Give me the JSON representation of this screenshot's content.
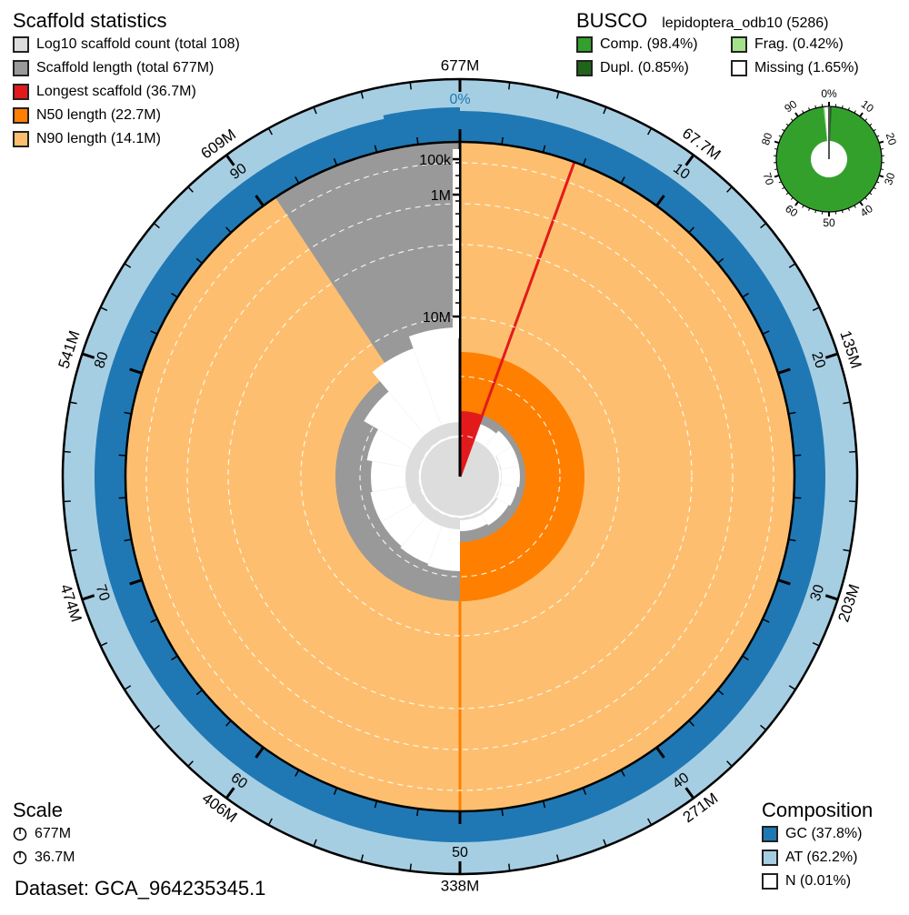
{
  "scaffold_legend": {
    "title": "Scaffold statistics",
    "items": [
      {
        "label": "Log10 scaffold count (total 108)",
        "color": "#dddddd"
      },
      {
        "label": "Scaffold length (total 677M)",
        "color": "#999999"
      },
      {
        "label": "Longest scaffold (36.7M)",
        "color": "#e31a1c"
      },
      {
        "label": "N50 length (22.7M)",
        "color": "#ff7f00"
      },
      {
        "label": "N90 length (14.1M)",
        "color": "#fdbf6f"
      }
    ]
  },
  "busco_legend": {
    "title": "BUSCO",
    "subtitle": "lepidoptera_odb10 (5286)",
    "items": [
      {
        "label": "Comp. (98.4%)",
        "color": "#33a02c"
      },
      {
        "label": "Frag. (0.42%)",
        "color": "#a3e28b"
      },
      {
        "label": "Dupl. (0.85%)",
        "color": "#20641c"
      },
      {
        "label": "Missing (1.65%)",
        "color": "#ffffff"
      }
    ]
  },
  "scale_legend": {
    "title": "Scale",
    "items": [
      {
        "label": "677M"
      },
      {
        "label": "36.7M"
      }
    ]
  },
  "composition_legend": {
    "title": "Composition",
    "items": [
      {
        "label": "GC (37.8%)",
        "color": "#1f78b4"
      },
      {
        "label": "AT (62.2%)",
        "color": "#a6cee3"
      },
      {
        "label": "N (0.01%)",
        "color": "#ffffff"
      }
    ]
  },
  "dataset": "Dataset: GCA_964235345.1",
  "chart_data": {
    "type": "snail",
    "title": "Scaffold statistics",
    "total_length_label": "677M",
    "outer_ticks_length": [
      "677M",
      "67.7M",
      "135M",
      "203M",
      "271M",
      "338M",
      "406M",
      "474M",
      "541M",
      "609M"
    ],
    "percent_ticks": [
      "0%",
      "10",
      "20",
      "30",
      "40",
      "50",
      "60",
      "70",
      "80",
      "90"
    ],
    "radial_log_ticks": [
      "100k",
      "1M",
      "10M"
    ],
    "scaffold_count": 108,
    "total_length": "677M",
    "longest_scaffold": "36.7M",
    "n50": "22.7M",
    "n90": "14.1M",
    "gc_percent": 37.8,
    "at_percent": 62.2,
    "n_percent": 0.01,
    "busco": {
      "lineage": "lepidoptera_odb10",
      "total": 5286,
      "complete": 98.4,
      "fragmented": 0.42,
      "duplicated": 0.85,
      "missing": 1.65,
      "ticks": [
        "0%",
        "10",
        "20",
        "30",
        "40",
        "50",
        "60",
        "70",
        "80",
        "90"
      ]
    }
  }
}
